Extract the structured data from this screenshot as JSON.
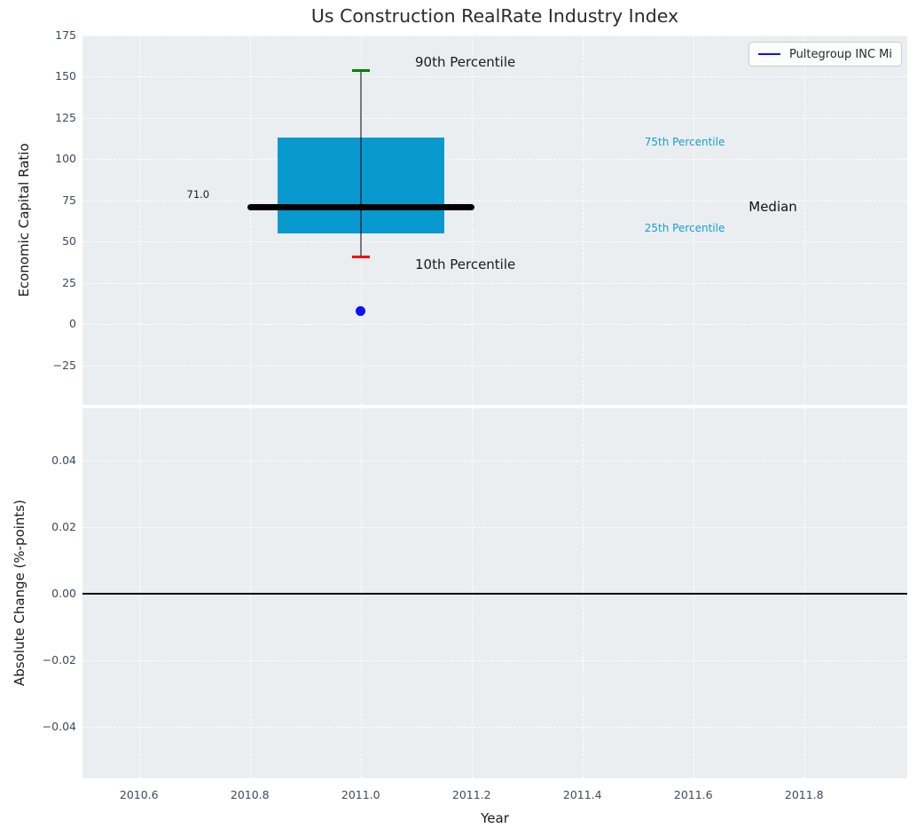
{
  "title": "Us Construction RealRate Industry Index",
  "legend": {
    "label": "Pultegroup INC Mi",
    "line_color": "#0f0fff"
  },
  "colors": {
    "figure_bg": "#ffffff",
    "axes_bg": "#eaeef0",
    "grid": "#ffffff",
    "box_fill": "#0899ce",
    "median_line": "#000000",
    "whisker": "rgba(0,0,0,0.5)",
    "cap_90th": "#008000",
    "cap_10th": "#ff0000",
    "point": "#0f0fff",
    "tick_label": "#3d4a5c",
    "axis_label": "#1a1a1a",
    "title": "#2b2b2b",
    "percentile_label": "#1a9ecd",
    "zero_line": "#000000"
  },
  "chart_data": [
    {
      "type": "boxplot",
      "title": "Us Construction RealRate Industry Index",
      "ylabel": "Economic Capital Ratio",
      "xlim": [
        2010.498,
        2011.986
      ],
      "ylim": [
        -48.7,
        175
      ],
      "grid": true,
      "legend_position": "upper right",
      "yticks": [
        {
          "v": 175,
          "label": "175"
        },
        {
          "v": 150,
          "label": "150"
        },
        {
          "v": 125,
          "label": "125"
        },
        {
          "v": 100,
          "label": "100"
        },
        {
          "v": 75,
          "label": "75"
        },
        {
          "v": 50,
          "label": "50"
        },
        {
          "v": 25,
          "label": "25"
        },
        {
          "v": 0,
          "label": "0"
        },
        {
          "v": -25,
          "label": "−25"
        }
      ],
      "xticks": [
        {
          "v": 2010.6,
          "label": "2010.6"
        },
        {
          "v": 2010.8,
          "label": "2010.8"
        },
        {
          "v": 2011.0,
          "label": "2011.0"
        },
        {
          "v": 2011.2,
          "label": "2011.2"
        },
        {
          "v": 2011.4,
          "label": "2011.4"
        },
        {
          "v": 2011.6,
          "label": "2011.6"
        },
        {
          "v": 2011.8,
          "label": "2011.8"
        }
      ],
      "box": {
        "x_center": 2011.0,
        "box_left": 2010.85,
        "box_right": 2011.15,
        "median_left": 2010.795,
        "median_right": 2011.205,
        "cap_half_width": 0.016,
        "p90": 154,
        "p75": 113,
        "median": 71,
        "p25": 55,
        "p10": 41,
        "median_label": "71.0",
        "point": {
          "x": 2011.0,
          "y": 8
        }
      },
      "annotations": [
        {
          "text": "90th Percentile",
          "x": 2011.098,
          "y": 159,
          "size": 15,
          "color": "#1a1a1a"
        },
        {
          "text": "10th Percentile",
          "x": 2011.098,
          "y": 36,
          "size": 15,
          "color": "#1a1a1a"
        },
        {
          "text": "75th Percentile",
          "x": 2011.512,
          "y": 110.5,
          "size": 12,
          "color": "#1a9ecd"
        },
        {
          "text": "25th Percentile",
          "x": 2011.512,
          "y": 58.5,
          "size": 12,
          "color": "#1a9ecd"
        },
        {
          "text": "Median",
          "x": 2011.7,
          "y": 71,
          "size": 15,
          "color": "#111111"
        },
        {
          "text": "71.0",
          "x": 2010.686,
          "y": 79,
          "size": 11.5,
          "color": "#1a1a1a"
        }
      ]
    },
    {
      "type": "line",
      "xlabel": "Year",
      "ylabel": "Absolute Change (%-points)",
      "xlim": [
        2010.498,
        2011.986
      ],
      "ylim": [
        -0.0556,
        0.0558
      ],
      "grid": true,
      "series": [],
      "zero_line": 0.0,
      "yticks": [
        {
          "v": 0.04,
          "label": "0.04"
        },
        {
          "v": 0.02,
          "label": "0.02"
        },
        {
          "v": 0.0,
          "label": "0.00"
        },
        {
          "v": -0.02,
          "label": "−0.02"
        },
        {
          "v": -0.04,
          "label": "−0.04"
        }
      ]
    }
  ]
}
